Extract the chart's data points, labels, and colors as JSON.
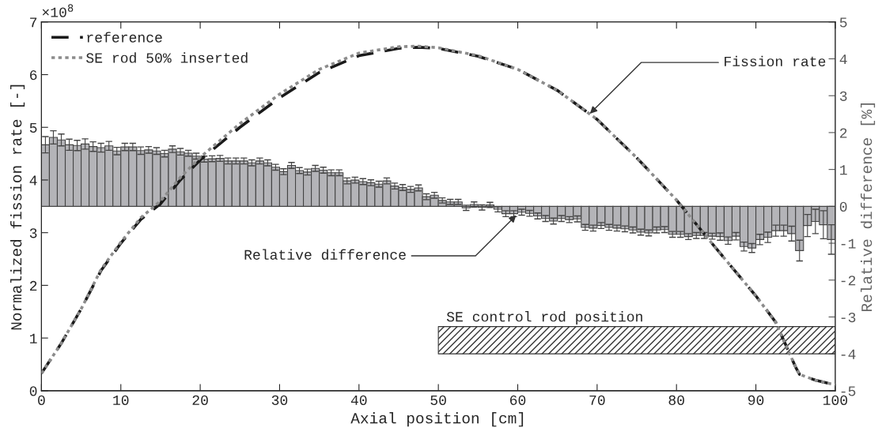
{
  "chart_data": {
    "type": "line",
    "xlabel": "Axial position [cm]",
    "ylabel": "Normalized fission rate [-]",
    "y2label": "Relative difference [%]",
    "xlim": [
      0,
      100
    ],
    "xticks": [
      0,
      10,
      20,
      30,
      40,
      50,
      60,
      70,
      80,
      90,
      100
    ],
    "ylim": [
      0,
      7
    ],
    "yticks": [
      0,
      1,
      2,
      3,
      4,
      5,
      6,
      7
    ],
    "y2lim": [
      -5,
      5
    ],
    "y2ticks": [
      -5,
      -4,
      -3,
      -2,
      -1,
      0,
      1,
      2,
      3,
      4,
      5
    ],
    "grid": false,
    "legend": "top left",
    "series": [
      {
        "type": "bar",
        "axis": "y2",
        "color": "#b4b4b8",
        "x": [
          0.5,
          1.5,
          2.5,
          3.5,
          4.5,
          5.5,
          6.5,
          7.5,
          8.5,
          9.5,
          10.5,
          11.5,
          12.5,
          13.5,
          14.5,
          15.5,
          16.5,
          17.5,
          18.5,
          19.5,
          20.5,
          21.5,
          22.5,
          23.5,
          24.5,
          25.5,
          26.5,
          27.5,
          28.5,
          29.5,
          30.5,
          31.5,
          32.5,
          33.5,
          34.5,
          35.5,
          36.5,
          37.5,
          38.5,
          39.5,
          40.5,
          41.5,
          42.5,
          43.5,
          44.5,
          45.5,
          46.5,
          47.5,
          48.5,
          49.5,
          50.5,
          51.5,
          52.5,
          53.5,
          54.5,
          55.5,
          56.5,
          57.5,
          58.5,
          59.5,
          60.5,
          61.5,
          62.5,
          63.5,
          64.5,
          65.5,
          66.5,
          67.5,
          68.5,
          69.5,
          70.5,
          71.5,
          72.5,
          73.5,
          74.5,
          75.5,
          76.5,
          77.5,
          78.5,
          79.5,
          80.5,
          81.5,
          82.5,
          83.5,
          84.5,
          85.5,
          86.5,
          87.5,
          88.5,
          89.5,
          90.5,
          91.5,
          92.5,
          93.5,
          94.5,
          95.5,
          96.5,
          97.5,
          98.5,
          99.5
        ],
        "values": [
          1.67,
          1.87,
          1.8,
          1.67,
          1.65,
          1.69,
          1.62,
          1.59,
          1.64,
          1.5,
          1.61,
          1.61,
          1.51,
          1.53,
          1.5,
          1.43,
          1.55,
          1.48,
          1.44,
          1.36,
          1.28,
          1.29,
          1.3,
          1.23,
          1.23,
          1.23,
          1.18,
          1.23,
          1.18,
          1.06,
          0.94,
          1.11,
          0.97,
          0.93,
          1.03,
          0.98,
          0.91,
          0.91,
          0.69,
          0.71,
          0.67,
          0.64,
          0.6,
          0.69,
          0.55,
          0.51,
          0.46,
          0.5,
          0.26,
          0.3,
          0.16,
          0.12,
          0.12,
          -0.04,
          0.05,
          -0.03,
          0.04,
          -0.08,
          -0.2,
          -0.2,
          -0.16,
          -0.19,
          -0.26,
          -0.33,
          -0.4,
          -0.33,
          -0.36,
          -0.34,
          -0.57,
          -0.59,
          -0.52,
          -0.57,
          -0.59,
          -0.61,
          -0.64,
          -0.7,
          -0.72,
          -0.64,
          -0.63,
          -0.76,
          -0.76,
          -0.82,
          -0.79,
          -0.79,
          -0.81,
          -0.82,
          -0.93,
          -0.81,
          -1.09,
          -1.13,
          -0.9,
          -0.84,
          -0.66,
          -0.66,
          -0.74,
          -1.2,
          -0.52,
          -0.41,
          -0.5,
          -0.9
        ],
        "errors": [
          0.22,
          0.18,
          0.16,
          0.15,
          0.14,
          0.14,
          0.13,
          0.12,
          0.12,
          0.1,
          0.1,
          0.1,
          0.1,
          0.09,
          0.09,
          0.09,
          0.09,
          0.09,
          0.08,
          0.08,
          0.08,
          0.08,
          0.08,
          0.08,
          0.08,
          0.08,
          0.08,
          0.08,
          0.08,
          0.08,
          0.08,
          0.08,
          0.08,
          0.08,
          0.08,
          0.08,
          0.08,
          0.08,
          0.08,
          0.08,
          0.08,
          0.08,
          0.08,
          0.08,
          0.08,
          0.08,
          0.08,
          0.08,
          0.08,
          0.08,
          0.07,
          0.07,
          0.07,
          0.07,
          0.07,
          0.07,
          0.07,
          0.07,
          0.08,
          0.08,
          0.08,
          0.08,
          0.08,
          0.08,
          0.08,
          0.08,
          0.08,
          0.08,
          0.08,
          0.08,
          0.08,
          0.08,
          0.08,
          0.08,
          0.08,
          0.08,
          0.08,
          0.08,
          0.08,
          0.08,
          0.08,
          0.08,
          0.08,
          0.08,
          0.08,
          0.1,
          0.1,
          0.1,
          0.12,
          0.12,
          0.14,
          0.14,
          0.15,
          0.15,
          0.2,
          0.28,
          0.3,
          0.33,
          0.38,
          0.4
        ]
      },
      {
        "name": "reference",
        "color": "#1a1a1a",
        "line_style": "dashed",
        "x": [
          0,
          2.5,
          5,
          7.5,
          10,
          12.5,
          15,
          17.5,
          20,
          25,
          30,
          35,
          40,
          45,
          47.5,
          50,
          55,
          60,
          65,
          70,
          75,
          80,
          85,
          90,
          92.5,
          95,
          95.5,
          97.5,
          100
        ],
        "values": [
          0.33,
          0.9,
          1.55,
          2.28,
          2.8,
          3.25,
          3.55,
          4.0,
          4.38,
          5.0,
          5.56,
          6.04,
          6.36,
          6.5,
          6.52,
          6.5,
          6.35,
          6.1,
          5.7,
          5.15,
          4.42,
          3.62,
          2.7,
          1.8,
          1.3,
          0.45,
          0.31,
          0.2,
          0.11
        ]
      },
      {
        "name": "SE rod 50% inserted",
        "color": "#8c8c8c",
        "line_style": "dotted",
        "x": [
          0,
          2.5,
          5,
          7.5,
          10,
          12.5,
          15,
          17.5,
          20,
          25,
          30,
          35,
          40,
          45,
          47.5,
          50,
          55,
          60,
          65,
          70,
          75,
          80,
          85,
          90,
          92.5,
          95,
          95.5,
          97.5,
          100
        ],
        "values": [
          0.33,
          0.9,
          1.55,
          2.3,
          2.82,
          3.28,
          3.6,
          4.05,
          4.43,
          5.07,
          5.63,
          6.1,
          6.41,
          6.53,
          6.54,
          6.51,
          6.36,
          6.1,
          5.7,
          5.15,
          4.42,
          3.62,
          2.7,
          1.8,
          1.3,
          0.45,
          0.31,
          0.2,
          0.11
        ]
      }
    ],
    "bands": [
      {
        "axis": "x",
        "from": 50,
        "to": 100,
        "label": "SE control rod position",
        "color": "#333333"
      }
    ],
    "annotations": [
      "×10$^{8}$",
      {
        "text": "Fission rate",
        "x": 68.9,
        "y": 5.23
      },
      {
        "text": "Relative difference",
        "x": 60,
        "y": 3.36
      }
    ]
  }
}
